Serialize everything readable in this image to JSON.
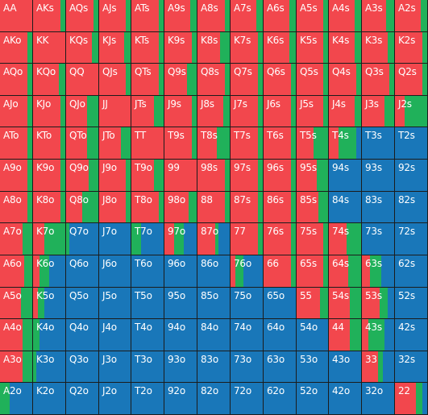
{
  "colors": {
    "raise": "#f2474d",
    "call": "#20b15a",
    "fold": "#1977b9",
    "gridline": "#1c1c1c"
  },
  "grid": {
    "rows": [
      [
        "AA",
        "AKs",
        "AQs",
        "AJs",
        "ATs",
        "A9s",
        "A8s",
        "A7s",
        "A6s",
        "A5s",
        "A4s",
        "A3s",
        "A2s"
      ],
      [
        "AKo",
        "KK",
        "KQs",
        "KJs",
        "KTs",
        "K9s",
        "K8s",
        "K7s",
        "K6s",
        "K5s",
        "K4s",
        "K3s",
        "K2s"
      ],
      [
        "AQo",
        "KQo",
        "QQ",
        "QJs",
        "QTs",
        "Q9s",
        "Q8s",
        "Q7s",
        "Q6s",
        "Q5s",
        "Q4s",
        "Q3s",
        "Q2s"
      ],
      [
        "AJo",
        "KJo",
        "QJo",
        "JJ",
        "JTs",
        "J9s",
        "J8s",
        "J7s",
        "J6s",
        "J5s",
        "J4s",
        "J3s",
        "J2s"
      ],
      [
        "ATo",
        "KTo",
        "QTo",
        "JTo",
        "TT",
        "T9s",
        "T8s",
        "T7s",
        "T6s",
        "T5s",
        "T4s",
        "T3s",
        "T2s"
      ],
      [
        "A9o",
        "K9o",
        "Q9o",
        "J9o",
        "T9o",
        "99",
        "98s",
        "97s",
        "96s",
        "95s",
        "94s",
        "93s",
        "92s"
      ],
      [
        "A8o",
        "K8o",
        "Q8o",
        "J8o",
        "T8o",
        "98o",
        "88",
        "87s",
        "86s",
        "85s",
        "84s",
        "83s",
        "82s"
      ],
      [
        "A7o",
        "K7o",
        "Q7o",
        "J7o",
        "T7o",
        "97o",
        "87o",
        "77",
        "76s",
        "75s",
        "74s",
        "73s",
        "72s"
      ],
      [
        "A6o",
        "K6o",
        "Q6o",
        "J6o",
        "T6o",
        "96o",
        "86o",
        "76o",
        "66",
        "65s",
        "64s",
        "63s",
        "62s"
      ],
      [
        "A5o",
        "K5o",
        "Q5o",
        "J5o",
        "T5o",
        "95o",
        "85o",
        "75o",
        "65o",
        "55",
        "54s",
        "53s",
        "52s"
      ],
      [
        "A4o",
        "K4o",
        "Q4o",
        "J4o",
        "T4o",
        "94o",
        "84o",
        "74o",
        "64o",
        "54o",
        "44",
        "43s",
        "42s"
      ],
      [
        "A3o",
        "K3o",
        "Q3o",
        "J3o",
        "T3o",
        "93o",
        "83o",
        "73o",
        "63o",
        "53o",
        "43o",
        "33",
        "32s"
      ],
      [
        "A2o",
        "K2o",
        "Q2o",
        "J2o",
        "T2o",
        "92o",
        "82o",
        "72o",
        "62o",
        "52o",
        "42o",
        "32o",
        "22"
      ]
    ],
    "strategy": [
      [
        [
          1,
          0,
          0
        ],
        [
          0.85,
          0.15,
          0
        ],
        [
          0.85,
          0.15,
          0
        ],
        [
          0.85,
          0.15,
          0
        ],
        [
          0.85,
          0.15,
          0
        ],
        [
          0.8,
          0.2,
          0
        ],
        [
          0.85,
          0.15,
          0
        ],
        [
          0.8,
          0.2,
          0
        ],
        [
          0.8,
          0.2,
          0
        ],
        [
          0.85,
          0.15,
          0
        ],
        [
          0.8,
          0.2,
          0
        ],
        [
          0.75,
          0.25,
          0
        ],
        [
          0.8,
          0.2,
          0
        ]
      ],
      [
        [
          0.85,
          0.15,
          0
        ],
        [
          1,
          0,
          0
        ],
        [
          0.8,
          0.2,
          0
        ],
        [
          0.8,
          0.2,
          0
        ],
        [
          0.85,
          0.15,
          0
        ],
        [
          0.85,
          0.15,
          0
        ],
        [
          0.7,
          0.3,
          0
        ],
        [
          0.85,
          0.15,
          0
        ],
        [
          0.8,
          0.2,
          0
        ],
        [
          0.85,
          0.15,
          0
        ],
        [
          0.8,
          0.2,
          0
        ],
        [
          0.8,
          0.2,
          0
        ],
        [
          0.85,
          0.15,
          0
        ]
      ],
      [
        [
          0.85,
          0.15,
          0
        ],
        [
          0.8,
          0.2,
          0
        ],
        [
          1,
          0,
          0
        ],
        [
          0.85,
          0.15,
          0
        ],
        [
          0.85,
          0.15,
          0
        ],
        [
          0.7,
          0.3,
          0
        ],
        [
          0.85,
          0.15,
          0
        ],
        [
          0.85,
          0.15,
          0
        ],
        [
          0.85,
          0.15,
          0
        ],
        [
          0.85,
          0.15,
          0
        ],
        [
          0.85,
          0.15,
          0
        ],
        [
          0.85,
          0.15,
          0
        ],
        [
          0.85,
          0.15,
          0
        ]
      ],
      [
        [
          0.85,
          0.15,
          0
        ],
        [
          0.85,
          0.15,
          0
        ],
        [
          0.65,
          0.35,
          0
        ],
        [
          1,
          0,
          0
        ],
        [
          0.7,
          0.3,
          0
        ],
        [
          0.85,
          0.15,
          0
        ],
        [
          0.8,
          0.2,
          0
        ],
        [
          0.85,
          0.15,
          0
        ],
        [
          0.85,
          0.15,
          0
        ],
        [
          0.85,
          0.15,
          0
        ],
        [
          0.8,
          0.2,
          0
        ],
        [
          0.7,
          0.3,
          0
        ],
        [
          0.3,
          0.7,
          0
        ]
      ],
      [
        [
          0.85,
          0.15,
          0
        ],
        [
          0.85,
          0.15,
          0
        ],
        [
          0.65,
          0.35,
          0
        ],
        [
          0.7,
          0.3,
          0
        ],
        [
          1,
          0,
          0
        ],
        [
          0.85,
          0.15,
          0
        ],
        [
          0.6,
          0.4,
          0
        ],
        [
          0.85,
          0.15,
          0
        ],
        [
          0.85,
          0.15,
          0
        ],
        [
          0.55,
          0.45,
          0
        ],
        [
          0.3,
          0.55,
          0.15
        ],
        [
          0,
          0,
          1
        ],
        [
          0,
          0,
          1
        ]
      ],
      [
        [
          0.85,
          0.15,
          0
        ],
        [
          0.85,
          0.15,
          0
        ],
        [
          0.7,
          0.3,
          0
        ],
        [
          0.85,
          0.15,
          0
        ],
        [
          0.7,
          0.3,
          0
        ],
        [
          1,
          0,
          0
        ],
        [
          0.85,
          0.15,
          0
        ],
        [
          0.85,
          0.15,
          0
        ],
        [
          0.85,
          0.15,
          0
        ],
        [
          0.65,
          0.35,
          0
        ],
        [
          0,
          0,
          1
        ],
        [
          0,
          0,
          1
        ],
        [
          0,
          0,
          1
        ]
      ],
      [
        [
          0.85,
          0.15,
          0
        ],
        [
          0.85,
          0.15,
          0
        ],
        [
          0.5,
          0.5,
          0
        ],
        [
          0.85,
          0.15,
          0
        ],
        [
          0.85,
          0.15,
          0
        ],
        [
          0.75,
          0.25,
          0
        ],
        [
          0.85,
          0.15,
          0
        ],
        [
          0.85,
          0.15,
          0
        ],
        [
          0.85,
          0.15,
          0
        ],
        [
          0.7,
          0.3,
          0
        ],
        [
          0,
          0,
          1
        ],
        [
          0,
          0,
          1
        ],
        [
          0,
          0,
          1
        ]
      ],
      [
        [
          0.7,
          0.3,
          0
        ],
        [
          0.35,
          0.65,
          0
        ],
        [
          0,
          0.1,
          0.9
        ],
        [
          0,
          0,
          1
        ],
        [
          0,
          0.3,
          0.7
        ],
        [
          0.3,
          0.3,
          0.4
        ],
        [
          0.55,
          0.1,
          0.35
        ],
        [
          0.85,
          0.15,
          0
        ],
        [
          0.85,
          0.15,
          0
        ],
        [
          0.85,
          0.15,
          0
        ],
        [
          0.55,
          0.45,
          0
        ],
        [
          0,
          0,
          1
        ],
        [
          0,
          0,
          1
        ]
      ],
      [
        [
          0.75,
          0.25,
          0
        ],
        [
          0.2,
          0.3,
          0.5
        ],
        [
          0,
          0,
          1
        ],
        [
          0,
          0,
          1
        ],
        [
          0,
          0,
          1
        ],
        [
          0,
          0,
          1
        ],
        [
          0,
          0,
          1
        ],
        [
          0.15,
          0.25,
          0.6
        ],
        [
          0.85,
          0.15,
          0
        ],
        [
          0.85,
          0.15,
          0
        ],
        [
          0.6,
          0.4,
          0
        ],
        [
          0.25,
          0.35,
          0.4
        ],
        [
          0,
          0,
          1
        ]
      ],
      [
        [
          0.65,
          0.35,
          0
        ],
        [
          0.15,
          0.2,
          0.65
        ],
        [
          0,
          0,
          1
        ],
        [
          0,
          0,
          1
        ],
        [
          0,
          0,
          1
        ],
        [
          0,
          0,
          1
        ],
        [
          0,
          0,
          1
        ],
        [
          0,
          0,
          1
        ],
        [
          0,
          0,
          1
        ],
        [
          0.75,
          0.25,
          0
        ],
        [
          0.65,
          0.35,
          0
        ],
        [
          0.55,
          0.25,
          0.2
        ],
        [
          0,
          0,
          1
        ]
      ],
      [
        [
          0.7,
          0.3,
          0
        ],
        [
          0,
          0.2,
          0.8
        ],
        [
          0,
          0,
          1
        ],
        [
          0,
          0,
          1
        ],
        [
          0,
          0,
          1
        ],
        [
          0,
          0,
          1
        ],
        [
          0,
          0,
          1
        ],
        [
          0,
          0,
          1
        ],
        [
          0,
          0,
          1
        ],
        [
          0,
          0,
          1
        ],
        [
          0.65,
          0.35,
          0
        ],
        [
          0.2,
          0.5,
          0.3
        ],
        [
          0,
          0,
          1
        ]
      ],
      [
        [
          0.7,
          0.3,
          0
        ],
        [
          0,
          0.1,
          0.9
        ],
        [
          0,
          0,
          1
        ],
        [
          0,
          0,
          1
        ],
        [
          0,
          0,
          1
        ],
        [
          0,
          0,
          1
        ],
        [
          0,
          0,
          1
        ],
        [
          0,
          0,
          1
        ],
        [
          0,
          0,
          1
        ],
        [
          0,
          0,
          1
        ],
        [
          0,
          0,
          1
        ],
        [
          0.5,
          0.15,
          0.35
        ],
        [
          0,
          0,
          1
        ]
      ],
      [
        [
          0,
          0.3,
          0.7
        ],
        [
          0,
          0,
          1
        ],
        [
          0,
          0,
          1
        ],
        [
          0,
          0,
          1
        ],
        [
          0,
          0,
          1
        ],
        [
          0,
          0,
          1
        ],
        [
          0,
          0,
          1
        ],
        [
          0,
          0,
          1
        ],
        [
          0,
          0,
          1
        ],
        [
          0,
          0,
          1
        ],
        [
          0,
          0,
          1
        ],
        [
          0,
          0,
          1
        ],
        [
          0.65,
          0.2,
          0.15
        ]
      ]
    ]
  }
}
